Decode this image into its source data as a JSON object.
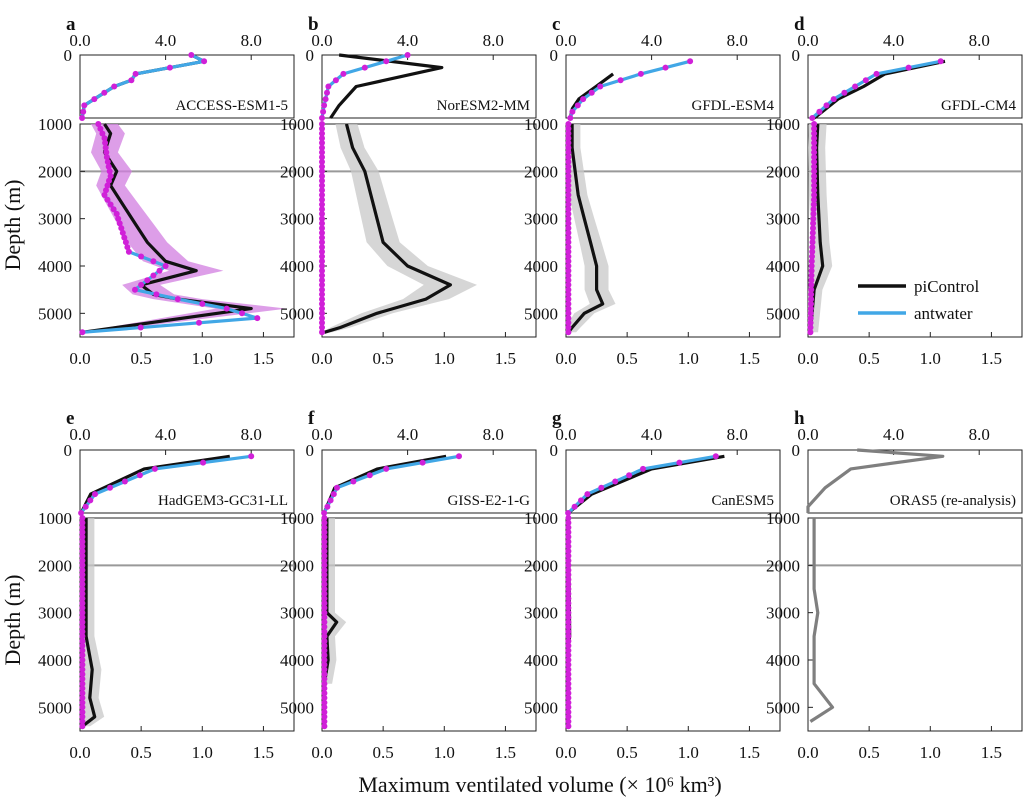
{
  "figure": {
    "xlabel": "Maximum ventilated volume (× 10⁶ km³)",
    "ylabel": "Depth (m)"
  },
  "legend": {
    "entries": [
      {
        "name": "piControl",
        "color": "#111111"
      },
      {
        "name": "antwater",
        "color": "#41a7e6"
      }
    ]
  },
  "colors": {
    "picontrol": "#111111",
    "antwater": "#41a7e6",
    "marker": "#d020d8",
    "spread_grey": "#c8c8c8",
    "spread_magenta": "#d27ee0",
    "reanalysis": "#7f7f7f",
    "reference_line": "#999999"
  },
  "chart_data": {
    "type": "line",
    "layout": "2x4 panel grid, each panel split into upper (0–1000 m) and lower (1000–5500 m) depth sections",
    "top_axis": {
      "label_scale": "upper-section volume",
      "range": [
        0,
        10
      ],
      "ticks": [
        "0.0",
        "4.0",
        "8.0"
      ]
    },
    "bottom_axis": {
      "label_scale": "lower-section volume",
      "range": [
        0,
        1.75
      ],
      "ticks": [
        "0.0",
        "0.5",
        "1.0",
        "1.5"
      ]
    },
    "depth_axis": {
      "upper_range": [
        0,
        1000
      ],
      "upper_ticks": [
        "0"
      ],
      "lower_range": [
        1000,
        5500
      ],
      "lower_ticks": [
        "1000",
        "2000",
        "3000",
        "4000",
        "5000"
      ],
      "reversed": true
    },
    "reference_depth": 2000,
    "panels": [
      {
        "letter": "a",
        "model": "ACCESS-ESM1-5",
        "upper": {
          "picontrol": [
            [
              5.2,
              0
            ],
            [
              5.8,
              100
            ],
            [
              2.6,
              300
            ],
            [
              2.4,
              400
            ],
            [
              1.6,
              500
            ],
            [
              0.2,
              800
            ],
            [
              0.1,
              1000
            ]
          ],
          "antwater": [
            [
              5.2,
              0
            ],
            [
              5.8,
              100
            ],
            [
              2.6,
              300
            ],
            [
              2.4,
              400
            ],
            [
              1.6,
              500
            ],
            [
              0.2,
              800
            ],
            [
              0.1,
              1000
            ]
          ]
        },
        "lower": {
          "picontrol": [
            [
              0.2,
              1000
            ],
            [
              0.25,
              1200
            ],
            [
              0.2,
              1600
            ],
            [
              0.3,
              2000
            ],
            [
              0.25,
              2300
            ],
            [
              0.35,
              2700
            ],
            [
              0.45,
              3100
            ],
            [
              0.55,
              3500
            ],
            [
              0.7,
              3900
            ],
            [
              0.95,
              4100
            ],
            [
              0.5,
              4400
            ],
            [
              0.6,
              4600
            ],
            [
              0.8,
              4700
            ],
            [
              1.4,
              4900
            ],
            [
              0.02,
              5400
            ]
          ],
          "antwater": [
            [
              0.15,
              1000
            ],
            [
              0.2,
              1300
            ],
            [
              0.22,
              1700
            ],
            [
              0.25,
              2100
            ],
            [
              0.2,
              2500
            ],
            [
              0.3,
              2900
            ],
            [
              0.35,
              3300
            ],
            [
              0.4,
              3700
            ],
            [
              0.7,
              4000
            ],
            [
              0.45,
              4500
            ],
            [
              0.8,
              4700
            ],
            [
              1.2,
              4900
            ],
            [
              1.45,
              5100
            ],
            [
              0.02,
              5400
            ]
          ],
          "spread": "magenta"
        },
        "marker_series": "antwater"
      },
      {
        "letter": "b",
        "model": "NorESM2-MM",
        "upper": {
          "picontrol": [
            [
              0.8,
              0
            ],
            [
              5.6,
              200
            ],
            [
              1.6,
              500
            ],
            [
              0.8,
              800
            ],
            [
              0.4,
              1000
            ]
          ],
          "antwater": [
            [
              4.0,
              0
            ],
            [
              3.0,
              100
            ],
            [
              1.0,
              300
            ],
            [
              0.3,
              500
            ],
            [
              0.1,
              800
            ],
            [
              0.0,
              1000
            ]
          ]
        },
        "lower": {
          "picontrol": [
            [
              0.2,
              1000
            ],
            [
              0.25,
              1500
            ],
            [
              0.35,
              2000
            ],
            [
              0.4,
              2500
            ],
            [
              0.45,
              3000
            ],
            [
              0.5,
              3500
            ],
            [
              0.7,
              4000
            ],
            [
              1.05,
              4400
            ],
            [
              0.85,
              4700
            ],
            [
              0.45,
              5000
            ],
            [
              0.15,
              5300
            ],
            [
              0.02,
              5400
            ]
          ],
          "antwater": [
            [
              0.0,
              1000
            ],
            [
              0.0,
              5400
            ]
          ],
          "spread": "grey"
        },
        "marker_series": "antwater"
      },
      {
        "letter": "c",
        "model": "GFDL-ESM4",
        "upper": {
          "picontrol": [
            [
              2.2,
              300
            ],
            [
              1.4,
              500
            ],
            [
              0.6,
              700
            ],
            [
              0.3,
              850
            ],
            [
              0.2,
              1000
            ]
          ],
          "antwater": [
            [
              5.8,
              100
            ],
            [
              3.5,
              300
            ],
            [
              1.6,
              500
            ],
            [
              0.8,
              700
            ],
            [
              0.3,
              900
            ],
            [
              0.2,
              1000
            ]
          ]
        },
        "lower": {
          "picontrol": [
            [
              0.05,
              1000
            ],
            [
              0.05,
              1500
            ],
            [
              0.1,
              2500
            ],
            [
              0.15,
              3000
            ],
            [
              0.2,
              3500
            ],
            [
              0.25,
              4000
            ],
            [
              0.25,
              4500
            ],
            [
              0.3,
              4800
            ],
            [
              0.15,
              5000
            ],
            [
              0.05,
              5300
            ],
            [
              0.02,
              5400
            ]
          ],
          "antwater": [
            [
              0.02,
              1000
            ],
            [
              0.02,
              5400
            ]
          ],
          "spread": "grey"
        },
        "marker_series": "antwater"
      },
      {
        "letter": "d",
        "model": "GFDL-CM4",
        "upper": {
          "picontrol": [
            [
              6.4,
              100
            ],
            [
              3.6,
              300
            ],
            [
              2.6,
              500
            ],
            [
              1.4,
              700
            ],
            [
              0.3,
              1000
            ]
          ],
          "antwater": [
            [
              6.2,
              100
            ],
            [
              3.2,
              300
            ],
            [
              2.2,
              500
            ],
            [
              1.2,
              700
            ],
            [
              0.2,
              1000
            ]
          ]
        },
        "lower": {
          "picontrol": [
            [
              0.08,
              1000
            ],
            [
              0.07,
              1500
            ],
            [
              0.08,
              2500
            ],
            [
              0.1,
              3500
            ],
            [
              0.12,
              4000
            ],
            [
              0.05,
              4500
            ],
            [
              0.02,
              5400
            ]
          ],
          "antwater": [
            [
              0.05,
              1000
            ],
            [
              0.05,
              2500
            ],
            [
              0.03,
              4000
            ],
            [
              0.02,
              5400
            ]
          ],
          "spread": "grey"
        },
        "marker_series": "antwater"
      },
      {
        "letter": "e",
        "model": "HadGEM3-GC31-LL",
        "upper": {
          "picontrol": [
            [
              7.0,
              100
            ],
            [
              3.0,
              300
            ],
            [
              0.5,
              700
            ],
            [
              0.05,
              1000
            ]
          ],
          "antwater": [
            [
              8.0,
              100
            ],
            [
              3.5,
              300
            ],
            [
              0.7,
              700
            ],
            [
              0.05,
              1000
            ]
          ]
        },
        "lower": {
          "picontrol": [
            [
              0.05,
              1000
            ],
            [
              0.05,
              3500
            ],
            [
              0.1,
              4200
            ],
            [
              0.08,
              4800
            ],
            [
              0.12,
              5200
            ],
            [
              0.02,
              5400
            ]
          ],
          "antwater": [
            [
              0.02,
              1000
            ],
            [
              0.02,
              5400
            ]
          ],
          "spread": "grey"
        },
        "marker_series": "antwater"
      },
      {
        "letter": "f",
        "model": "GISS-E2-1-G",
        "upper": {
          "picontrol": [
            [
              5.8,
              100
            ],
            [
              2.6,
              300
            ],
            [
              0.6,
              600
            ],
            [
              0.1,
              1000
            ]
          ],
          "antwater": [
            [
              6.4,
              100
            ],
            [
              3.0,
              300
            ],
            [
              0.7,
              600
            ],
            [
              0.1,
              1000
            ]
          ]
        },
        "lower": {
          "picontrol": [
            [
              0.04,
              1000
            ],
            [
              0.04,
              3000
            ],
            [
              0.12,
              3200
            ],
            [
              0.04,
              3500
            ],
            [
              0.05,
              4000
            ],
            [
              0.02,
              4500
            ]
          ],
          "antwater": [
            [
              0.02,
              1000
            ],
            [
              0.02,
              5400
            ]
          ],
          "spread": "grey"
        },
        "marker_series": "antwater"
      },
      {
        "letter": "g",
        "model": "CanESM5",
        "upper": {
          "picontrol": [
            [
              7.4,
              100
            ],
            [
              4.0,
              300
            ],
            [
              1.2,
              700
            ],
            [
              0.1,
              1000
            ]
          ],
          "antwater": [
            [
              7.0,
              100
            ],
            [
              3.6,
              300
            ],
            [
              1.0,
              700
            ],
            [
              0.1,
              1000
            ]
          ]
        },
        "lower": {
          "picontrol": [
            [
              0.02,
              1000
            ],
            [
              0.03,
              3500
            ],
            [
              0.02,
              3700
            ]
          ],
          "antwater": [
            [
              0.02,
              1000
            ],
            [
              0.02,
              5400
            ]
          ],
          "spread": "none"
        },
        "marker_series": "antwater"
      },
      {
        "letter": "h",
        "model": "ORAS5 (re-analysis)",
        "upper": {
          "reanalysis": [
            [
              2.3,
              0
            ],
            [
              6.3,
              100
            ],
            [
              2.0,
              300
            ],
            [
              0.8,
              600
            ],
            [
              0.0,
              900
            ],
            [
              0.0,
              1000
            ]
          ]
        },
        "lower": {
          "reanalysis": [
            [
              0.05,
              1000
            ],
            [
              0.05,
              1500
            ],
            [
              0.05,
              2500
            ],
            [
              0.08,
              3000
            ],
            [
              0.05,
              3500
            ],
            [
              0.05,
              4500
            ],
            [
              0.2,
              5000
            ],
            [
              0.02,
              5300
            ]
          ],
          "spread": "none"
        },
        "marker_series": "none"
      }
    ]
  }
}
